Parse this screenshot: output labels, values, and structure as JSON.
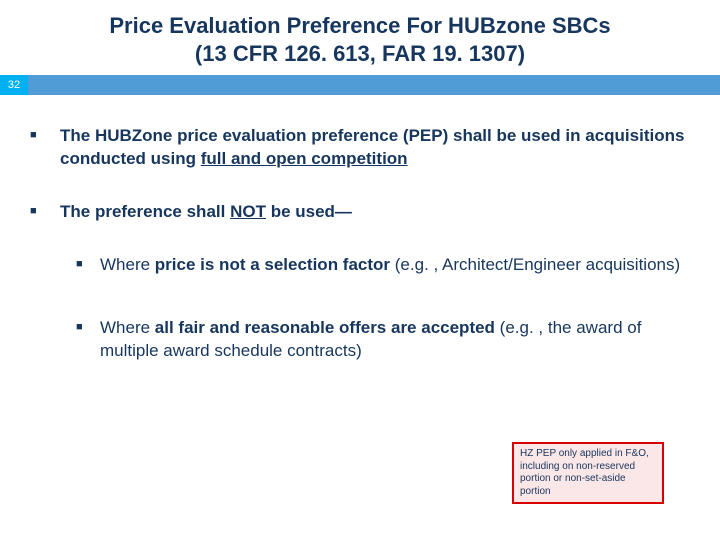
{
  "title_line1": "Price Evaluation Preference For HUBzone SBCs",
  "title_line2": "(13 CFR 126. 613, FAR 19. 1307)",
  "page_number": "32",
  "bullets": {
    "b1_pre": "The HUBZone price evaluation preference (PEP) shall be used in acquisitions conducted using ",
    "b1_ul": "full and open competition",
    "b2_pre": "The preference shall ",
    "b2_ul": "NOT",
    "b2_post": " be used—",
    "s1_pre": "Where ",
    "s1_bold": "price is not a selection factor",
    "s1_post": " (e.g. , Architect/Engineer acquisitions)",
    "s2_pre": "Where ",
    "s2_bold": "all fair and reasonable offers are accepted",
    "s2_post": " (e.g. , the award of multiple award schedule contracts)"
  },
  "note": "HZ PEP only applied in F&O, including on non-reserved portion or non-set-aside portion",
  "colors": {
    "title_color": "#17365d",
    "bar_color": "#4f9cd6",
    "pagebox_color": "#00b0f0",
    "note_border": "#d80000",
    "note_bg": "#fbe7e7"
  }
}
